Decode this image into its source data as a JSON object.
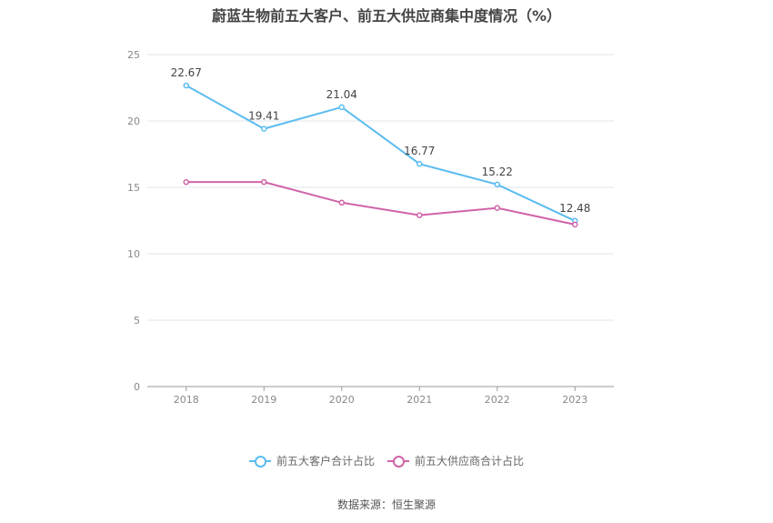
{
  "chart_data": {
    "type": "line",
    "title": "蔚蓝生物前五大客户、前五大供应商集中度情况（%）",
    "categories": [
      "2018",
      "2019",
      "2020",
      "2021",
      "2022",
      "2023"
    ],
    "ylim": [
      0,
      25
    ],
    "yticks": [
      0,
      5,
      10,
      15,
      20,
      25
    ],
    "grid": true,
    "legend_position": "bottom",
    "series": [
      {
        "name": "前五大客户合计占比",
        "color": "#5bbcf0",
        "values": [
          22.67,
          19.41,
          21.04,
          16.77,
          15.22,
          12.48
        ],
        "labels": [
          "22.67",
          "19.41",
          "21.04",
          "16.77",
          "15.22",
          "12.48"
        ]
      },
      {
        "name": "前五大供应商合计占比",
        "color": "#d063a8",
        "values": [
          15.4,
          15.4,
          13.85,
          12.9,
          13.45,
          12.2
        ]
      }
    ]
  },
  "source": "数据来源：恒生聚源"
}
